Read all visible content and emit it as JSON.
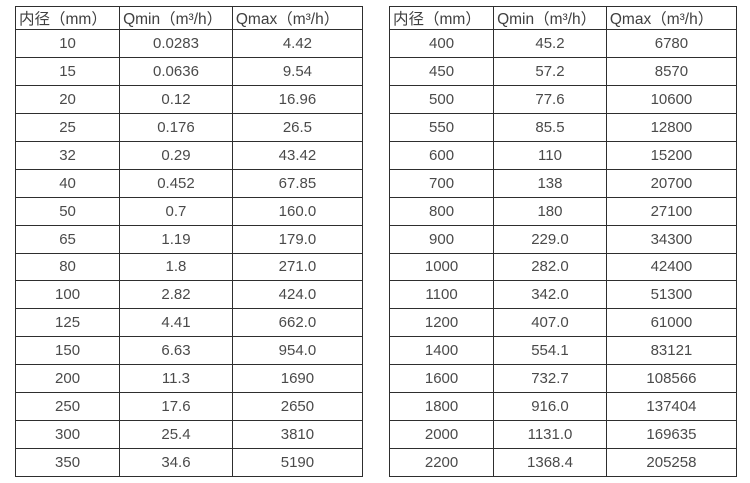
{
  "colors": {
    "background": "#ffffff",
    "border": "#2e2e2e",
    "text": "#4a4a4a",
    "header_text": "#404040"
  },
  "tables": [
    {
      "name": "flow-spec-small-diameter",
      "headers": [
        "内径（mm）",
        "Qmin（m³/h）",
        "Qmax（m³/h）"
      ],
      "rows": [
        [
          "10",
          "0.0283",
          "4.42"
        ],
        [
          "15",
          "0.0636",
          "9.54"
        ],
        [
          "20",
          "0.12",
          "16.96"
        ],
        [
          "25",
          "0.176",
          "26.5"
        ],
        [
          "32",
          "0.29",
          "43.42"
        ],
        [
          "40",
          "0.452",
          "67.85"
        ],
        [
          "50",
          "0.7",
          "160.0"
        ],
        [
          "65",
          "1.19",
          "179.0"
        ],
        [
          "80",
          "1.8",
          "271.0"
        ],
        [
          "100",
          "2.82",
          "424.0"
        ],
        [
          "125",
          "4.41",
          "662.0"
        ],
        [
          "150",
          "6.63",
          "954.0"
        ],
        [
          "200",
          "11.3",
          "1690"
        ],
        [
          "250",
          "17.6",
          "2650"
        ],
        [
          "300",
          "25.4",
          "3810"
        ],
        [
          "350",
          "34.6",
          "5190"
        ]
      ]
    },
    {
      "name": "flow-spec-large-diameter",
      "headers": [
        "内径（mm）",
        "Qmin（m³/h）",
        "Qmax（m³/h）"
      ],
      "rows": [
        [
          "400",
          "45.2",
          "6780"
        ],
        [
          "450",
          "57.2",
          "8570"
        ],
        [
          "500",
          "77.6",
          "10600"
        ],
        [
          "550",
          "85.5",
          "12800"
        ],
        [
          "600",
          "110",
          "15200"
        ],
        [
          "700",
          "138",
          "20700"
        ],
        [
          "800",
          "180",
          "27100"
        ],
        [
          "900",
          "229.0",
          "34300"
        ],
        [
          "1000",
          "282.0",
          "42400"
        ],
        [
          "1100",
          "342.0",
          "51300"
        ],
        [
          "1200",
          "407.0",
          "61000"
        ],
        [
          "1400",
          "554.1",
          "83121"
        ],
        [
          "1600",
          "732.7",
          "108566"
        ],
        [
          "1800",
          "916.0",
          "137404"
        ],
        [
          "2000",
          "1131.0",
          "169635"
        ],
        [
          "2200",
          "1368.4",
          "205258"
        ]
      ]
    }
  ]
}
